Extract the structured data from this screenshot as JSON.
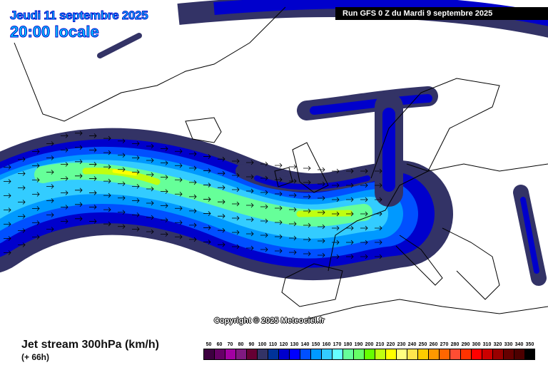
{
  "header": {
    "date": "Jeudi 11 septembre 2025",
    "time": "20:00 locale",
    "run": "Run GFS 0 Z du Mardi 9 septembre 2025"
  },
  "copyright": "Copyright © 2025 Meteociel.fr",
  "footer": {
    "title": "Jet stream 300hPa (km/h)",
    "lead": "(+ 66h)"
  },
  "legend": [
    {
      "label": "50",
      "color": "#3d0040"
    },
    {
      "label": "60",
      "color": "#660066"
    },
    {
      "label": "70",
      "color": "#a300a3"
    },
    {
      "label": "80",
      "color": "#801a80"
    },
    {
      "label": "90",
      "color": "#660033"
    },
    {
      "label": "100",
      "color": "#333366"
    },
    {
      "label": "110",
      "color": "#003399"
    },
    {
      "label": "120",
      "color": "#0000cc"
    },
    {
      "label": "130",
      "color": "#0000ff"
    },
    {
      "label": "140",
      "color": "#0050ff"
    },
    {
      "label": "150",
      "color": "#0099ff"
    },
    {
      "label": "160",
      "color": "#33ccff"
    },
    {
      "label": "170",
      "color": "#66ffff"
    },
    {
      "label": "180",
      "color": "#66ff99"
    },
    {
      "label": "190",
      "color": "#66ff66"
    },
    {
      "label": "200",
      "color": "#66ff00"
    },
    {
      "label": "210",
      "color": "#c0ff10"
    },
    {
      "label": "220",
      "color": "#ffff00"
    },
    {
      "label": "230",
      "color": "#ffff80"
    },
    {
      "label": "240",
      "color": "#ffe64d"
    },
    {
      "label": "250",
      "color": "#ffcc00"
    },
    {
      "label": "260",
      "color": "#ff9900"
    },
    {
      "label": "270",
      "color": "#ff6600"
    },
    {
      "label": "280",
      "color": "#ff4d33"
    },
    {
      "label": "290",
      "color": "#ff3300"
    },
    {
      "label": "300",
      "color": "#ff0000"
    },
    {
      "label": "310",
      "color": "#cc0000"
    },
    {
      "label": "320",
      "color": "#990000"
    },
    {
      "label": "330",
      "color": "#660000"
    },
    {
      "label": "340",
      "color": "#4d0000"
    },
    {
      "label": "350",
      "color": "#000000"
    }
  ]
}
